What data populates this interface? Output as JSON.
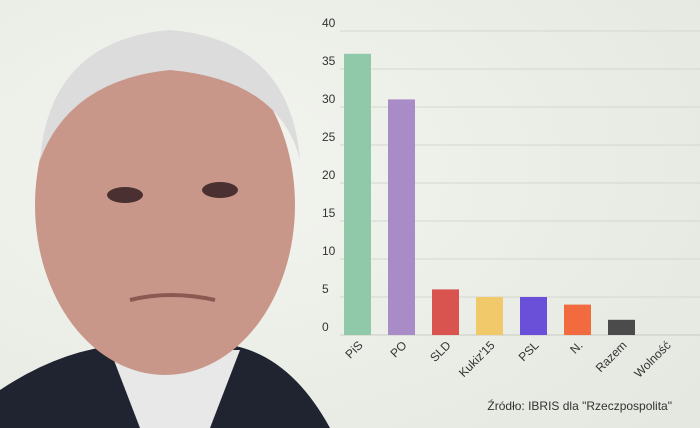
{
  "chart_data": {
    "type": "bar",
    "categories": [
      "PiS",
      "PO",
      "SLD",
      "Kukiz'15",
      "PSL",
      "N.",
      "Razem",
      "Wolność"
    ],
    "values": [
      37,
      31,
      6,
      5,
      5,
      4,
      2,
      0
    ],
    "colors": [
      "#8fc9a9",
      "#a98bc8",
      "#d9534f",
      "#f1c96b",
      "#6a4fd9",
      "#f26b3f",
      "#4b4b4b",
      "#4b4b4b"
    ],
    "ylim": [
      0,
      40
    ],
    "yticks": [
      0,
      5,
      10,
      15,
      20,
      25,
      30,
      35,
      40
    ],
    "grid": true,
    "source": "Źródło: IBRIS dla \"Rzeczpospolita\""
  }
}
